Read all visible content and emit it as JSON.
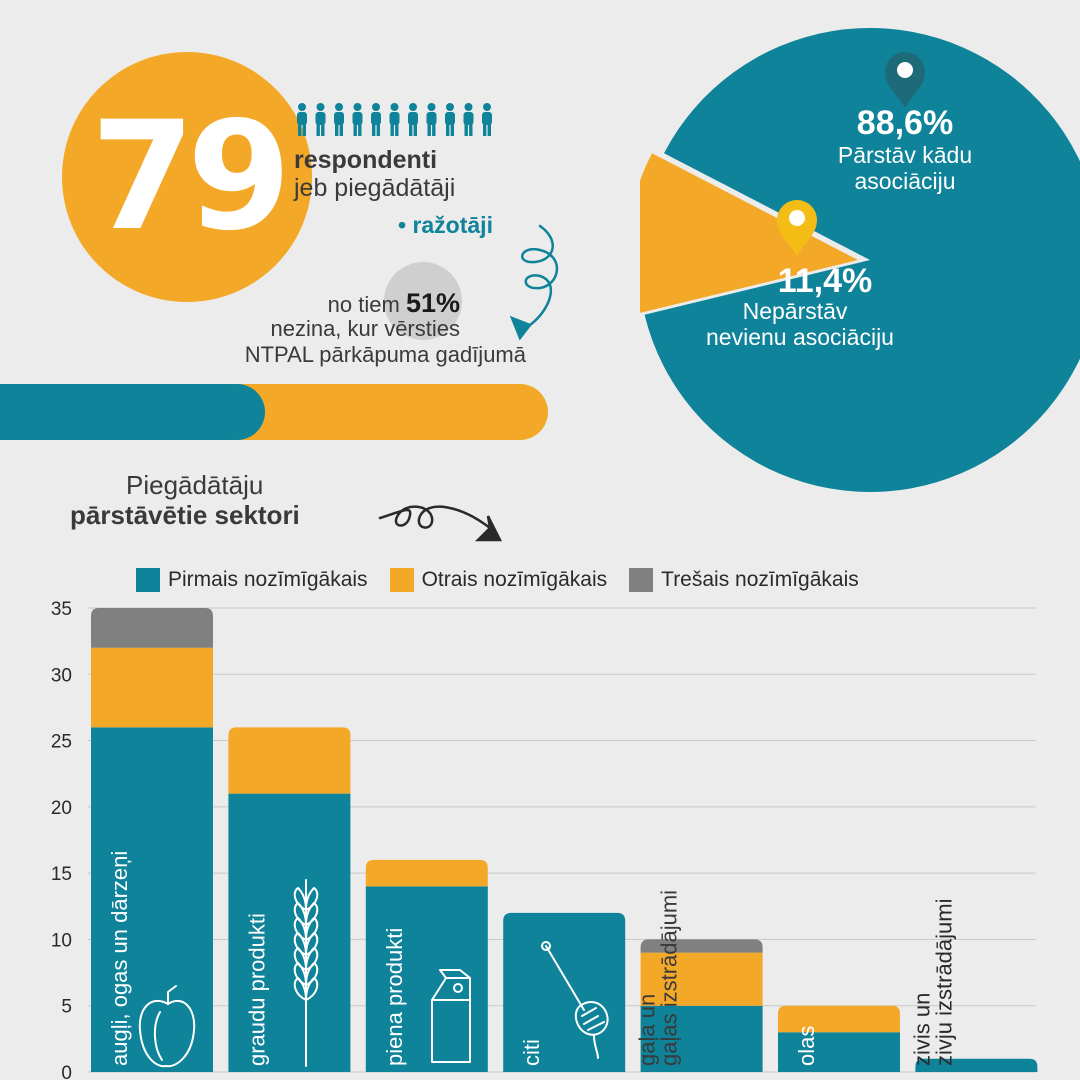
{
  "colors": {
    "teal": "#0e8399",
    "orange": "#f4a828",
    "grey": "#808080",
    "background": "#ececec"
  },
  "summary": {
    "respondents_number": "79",
    "respondents_label": "respondenti",
    "respondents_line2": "jeb piegādātāji",
    "respondents_line3": "• ražotāji",
    "stat_prefix": "no tiem",
    "stat_percent": "51%",
    "stat_line2": "nezina, kur vērsties",
    "stat_line3": "NTPAL pārkāpuma gadījumā",
    "progress_fraction": 0.51,
    "people_icon_count": 11,
    "people_icon": "person-icon"
  },
  "pie": {
    "slices": [
      {
        "percent_label": "88,6%",
        "line1": "Pārstāv kādu",
        "line2": "asociāciju",
        "value": 88.6,
        "color": "#0e8399",
        "marker_color": "#1e6a78",
        "icon": "map-pin-icon"
      },
      {
        "percent_label": "11,4%",
        "line1": "Nepārstāv",
        "line2": "nevienu asociāciju",
        "value": 11.4,
        "color": "#f4a828",
        "marker_color": "#f4bd16",
        "icon": "map-pin-icon"
      }
    ]
  },
  "sectors_title": {
    "line1": "Piegādātāju",
    "line2": "pārstāvētie sektori"
  },
  "chart_data": {
    "type": "bar",
    "stacked": true,
    "categories": [
      "augļi, ogas un dārzeņi",
      "graudu produkti",
      "piena produkti",
      "citi",
      "gaļa un gaļas izstrādājumi",
      "olas",
      "zivis un zivju izstrādājumi"
    ],
    "series": [
      {
        "name": "Pirmais nozīmīgākais",
        "color": "#0e8399",
        "values": [
          26,
          21,
          14,
          12,
          5,
          3,
          1
        ]
      },
      {
        "name": "Otrais nozīmīgākais",
        "color": "#f4a828",
        "values": [
          6,
          5,
          2,
          0,
          4,
          2,
          0
        ]
      },
      {
        "name": "Trešais nozīmīgākais",
        "color": "#808080",
        "values": [
          3,
          0,
          0,
          0,
          1,
          0,
          0
        ]
      }
    ],
    "ylim": [
      0,
      35
    ],
    "yticks": [
      "0",
      "5",
      "10",
      "15",
      "20",
      "25",
      "30",
      "35"
    ],
    "grid": true,
    "legend_position": "top",
    "category_icons": [
      "pepper-icon",
      "wheat-icon",
      "milk-carton-icon",
      "honey-dipper-icon",
      "",
      "",
      ""
    ]
  }
}
